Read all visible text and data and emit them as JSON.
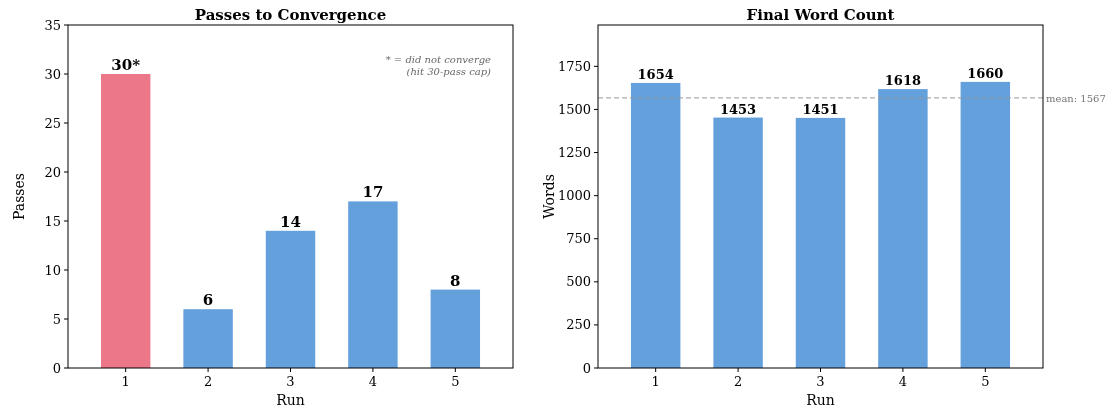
{
  "chart_data": [
    {
      "type": "bar",
      "title": "Passes to Convergence",
      "xlabel": "Run",
      "ylabel": "Passes",
      "categories": [
        "1",
        "2",
        "3",
        "4",
        "5"
      ],
      "values": [
        30,
        6,
        14,
        17,
        8
      ],
      "colors": [
        "#eb7789",
        "#64a0dc",
        "#64a0dc",
        "#64a0dc",
        "#64a0dc"
      ],
      "value_labels": [
        "30*",
        "6",
        "14",
        "17",
        "8"
      ],
      "ylim": [
        0,
        35
      ],
      "yticks": [
        0,
        5,
        10,
        15,
        20,
        25,
        30,
        35
      ],
      "annotations": [
        "* = did not converge\n(hit 30-pass cap)"
      ]
    },
    {
      "type": "bar",
      "title": "Final Word Count",
      "xlabel": "Run",
      "ylabel": "Words",
      "categories": [
        "1",
        "2",
        "3",
        "4",
        "5"
      ],
      "values": [
        1654,
        1453,
        1451,
        1618,
        1660
      ],
      "colors": [
        "#64a0dc",
        "#64a0dc",
        "#64a0dc",
        "#64a0dc",
        "#64a0dc"
      ],
      "data_labels": true,
      "ylim": [
        0,
        1990
      ],
      "yticks": [
        0,
        250,
        500,
        750,
        1000,
        1250,
        1500,
        1750
      ],
      "ref_lines": [
        {
          "axis": "y",
          "value": 1567,
          "label": "mean: 1567",
          "color": "#999999",
          "line_style": "dashed"
        }
      ]
    }
  ]
}
